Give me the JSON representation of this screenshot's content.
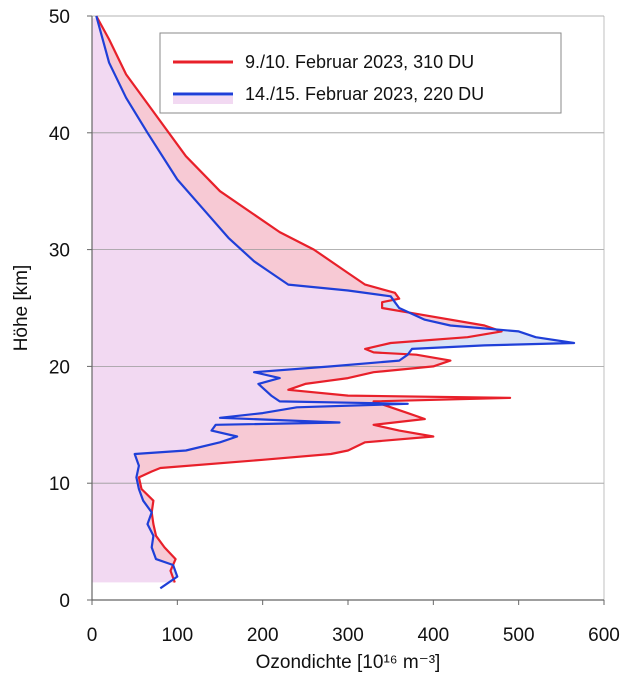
{
  "chart_data": {
    "type": "line",
    "xlabel": "Ozondichte [10¹⁶ m⁻³]",
    "ylabel": "Höhe [km]",
    "xlim": [
      0,
      600
    ],
    "ylim": [
      0,
      50
    ],
    "xticks": [
      "0",
      "100",
      "200",
      "300",
      "400",
      "500",
      "600"
    ],
    "yticks": [
      "0",
      "10",
      "20",
      "30",
      "40",
      "50"
    ],
    "grid": "horizontal",
    "legend": "top-right",
    "series": [
      {
        "name": "9./10. Februar 2023, 310 DU",
        "color": "#e8202a",
        "points": [
          [
            97,
            1.5
          ],
          [
            92,
            2.5
          ],
          [
            98,
            3.5
          ],
          [
            85,
            4.5
          ],
          [
            75,
            5.5
          ],
          [
            72,
            6.5
          ],
          [
            70,
            7.5
          ],
          [
            72,
            8.5
          ],
          [
            58,
            9.5
          ],
          [
            55,
            10.5
          ],
          [
            70,
            11
          ],
          [
            80,
            11.3
          ],
          [
            200,
            12
          ],
          [
            280,
            12.5
          ],
          [
            300,
            12.8
          ],
          [
            320,
            13.5
          ],
          [
            400,
            14.0
          ],
          [
            360,
            14.5
          ],
          [
            330,
            15.0
          ],
          [
            390,
            15.5
          ],
          [
            370,
            16.0
          ],
          [
            330,
            17.0
          ],
          [
            490,
            17.3
          ],
          [
            300,
            17.5
          ],
          [
            230,
            18.0
          ],
          [
            250,
            18.5
          ],
          [
            300,
            19.0
          ],
          [
            330,
            19.5
          ],
          [
            400,
            20.0
          ],
          [
            420,
            20.5
          ],
          [
            380,
            21.0
          ],
          [
            330,
            21.2
          ],
          [
            320,
            21.5
          ],
          [
            350,
            22.0
          ],
          [
            440,
            22.5
          ],
          [
            480,
            23.0
          ],
          [
            460,
            23.5
          ],
          [
            380,
            24.5
          ],
          [
            340,
            25.0
          ],
          [
            340,
            25.5
          ],
          [
            360,
            25.8
          ],
          [
            355,
            26.3
          ],
          [
            320,
            27.0
          ],
          [
            300,
            28.0
          ],
          [
            260,
            30.0
          ],
          [
            220,
            31.5
          ],
          [
            150,
            35.0
          ],
          [
            110,
            38.0
          ],
          [
            70,
            42.0
          ],
          [
            40,
            45.0
          ],
          [
            20,
            48.0
          ],
          [
            5,
            50.0
          ]
        ]
      },
      {
        "name": "14./15. Februar 2023, 220 DU",
        "color": "#1f3fd8",
        "points": [
          [
            80,
            1.0
          ],
          [
            100,
            2.0
          ],
          [
            95,
            3.0
          ],
          [
            75,
            3.5
          ],
          [
            70,
            4.5
          ],
          [
            72,
            5.5
          ],
          [
            65,
            6.5
          ],
          [
            70,
            7.5
          ],
          [
            60,
            8.5
          ],
          [
            55,
            9.5
          ],
          [
            52,
            10.5
          ],
          [
            55,
            11.5
          ],
          [
            50,
            12.5
          ],
          [
            110,
            12.8
          ],
          [
            150,
            13.5
          ],
          [
            170,
            14.0
          ],
          [
            140,
            14.5
          ],
          [
            145,
            15.0
          ],
          [
            290,
            15.2
          ],
          [
            150,
            15.6
          ],
          [
            200,
            16.0
          ],
          [
            240,
            16.5
          ],
          [
            370,
            16.8
          ],
          [
            220,
            17.0
          ],
          [
            210,
            17.5
          ],
          [
            195,
            18.5
          ],
          [
            220,
            19.0
          ],
          [
            190,
            19.5
          ],
          [
            280,
            20.0
          ],
          [
            360,
            20.5
          ],
          [
            370,
            21.0
          ],
          [
            375,
            21.5
          ],
          [
            460,
            21.8
          ],
          [
            565,
            22.0
          ],
          [
            520,
            22.5
          ],
          [
            500,
            23.0
          ],
          [
            420,
            23.5
          ],
          [
            390,
            24.0
          ],
          [
            360,
            25.0
          ],
          [
            355,
            25.5
          ],
          [
            350,
            26.0
          ],
          [
            300,
            26.5
          ],
          [
            230,
            27.0
          ],
          [
            210,
            28.0
          ],
          [
            190,
            29.0
          ],
          [
            160,
            31.0
          ],
          [
            130,
            33.5
          ],
          [
            100,
            36.0
          ],
          [
            65,
            40.0
          ],
          [
            40,
            43.0
          ],
          [
            20,
            46.0
          ],
          [
            5,
            50.0
          ]
        ]
      }
    ],
    "fills": [
      {
        "name": "shared",
        "color": "#f2d9f2"
      },
      {
        "name": "red-excess",
        "color": "#f7c9d4"
      },
      {
        "name": "blue-excess",
        "color": "#d9e2f6"
      }
    ]
  }
}
